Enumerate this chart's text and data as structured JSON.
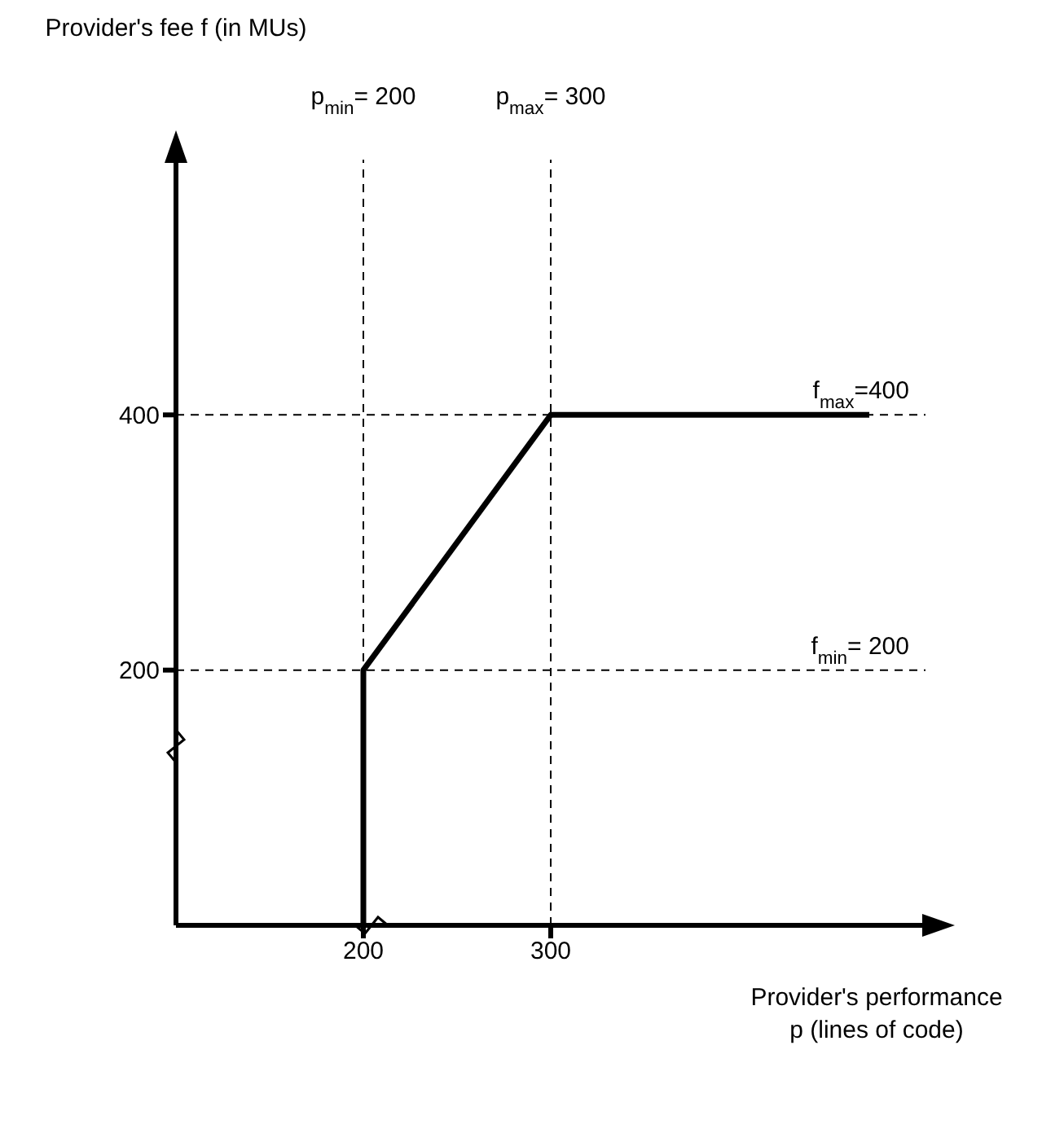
{
  "chart_data": {
    "type": "line",
    "xlabel": "Provider's performance p (lines of code)",
    "ylabel": "Provider's fee f (in MUs)",
    "x": [
      200,
      200,
      300,
      470
    ],
    "series": [
      {
        "color": "#000000",
        "values": [
          0,
          200,
          400,
          400
        ]
      }
    ],
    "xlim": [
      100,
      500
    ],
    "ylim": [
      0,
      600
    ],
    "xticks": [
      200,
      300
    ],
    "yticks": [
      200,
      400
    ],
    "grid": false,
    "legend": false,
    "marker": "none",
    "line_style": "solid",
    "ref_lines": [
      {
        "axis": "x",
        "value": 200,
        "label": "p$_{min}$= 200",
        "color": "#000000",
        "line_style": "dashed"
      },
      {
        "axis": "x",
        "value": 300,
        "label": "p$_{max}$= 300",
        "color": "#000000",
        "line_style": "dashed"
      },
      {
        "axis": "y",
        "value": 400,
        "label": "f$_{max}$=400",
        "color": "#000000",
        "line_style": "dashed"
      },
      {
        "axis": "y",
        "value": 200,
        "label": "f$_{min}$= 200",
        "color": "#000000",
        "line_style": "dashed"
      }
    ]
  }
}
